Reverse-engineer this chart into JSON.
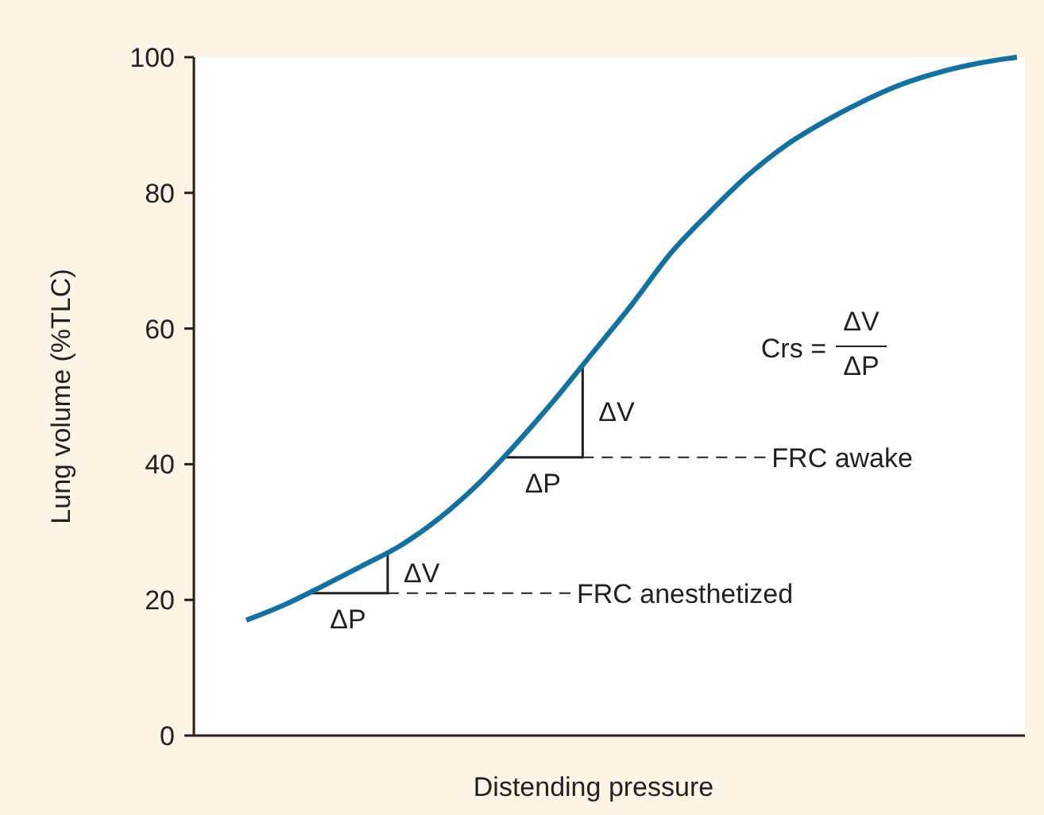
{
  "chart_data": {
    "type": "line",
    "xlabel": "Distending pressure",
    "ylabel": "Lung volume (%TLC)",
    "categories": [
      null,
      null,
      null,
      null,
      null,
      null,
      null,
      null,
      null,
      null,
      null,
      null,
      null,
      null,
      null,
      null,
      null,
      null,
      null,
      null,
      null
    ],
    "series": [
      {
        "color": "#14719f",
        "values": [
          17,
          19.3,
          22.1,
          25,
          28,
          32,
          37,
          43,
          49.5,
          56.5,
          63.5,
          71,
          77,
          82.5,
          87,
          90.5,
          93.5,
          96,
          97.8,
          99.1,
          100
        ]
      }
    ],
    "ylim": [
      0,
      100
    ],
    "yticks": [
      0,
      20,
      40,
      60,
      80,
      100
    ],
    "grid": false,
    "marker": "none",
    "line_style": "solid",
    "tick_labels": "y",
    "ref_lines": [
      {
        "axis": "y",
        "value": 21,
        "label": "FRC anesthetized",
        "line_style": "dashed",
        "color": "#231f20"
      },
      {
        "axis": "y",
        "value": 41,
        "label": "FRC awake",
        "line_style": "dashed",
        "color": "#231f20"
      }
    ],
    "annotations": [
      "Crs =",
      "ΔV",
      "ΔP",
      "ΔP",
      "ΔV",
      "ΔP",
      "ΔV"
    ]
  }
}
